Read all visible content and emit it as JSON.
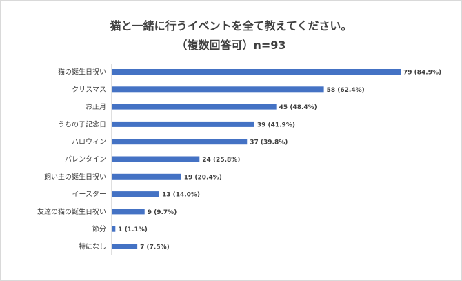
{
  "chart_data": {
    "type": "bar",
    "orientation": "horizontal",
    "title": "猫と一緒に行うイベントを全て教えてください。",
    "subtitle": "（複数回答可）n=93",
    "categories": [
      "猫の誕生日祝い",
      "クリスマス",
      "お正月",
      "うちの子記念日",
      "ハロウィン",
      "バレンタイン",
      "飼い主の誕生日祝い",
      "イースター",
      "友達の猫の誕生日祝い",
      "節分",
      "特になし"
    ],
    "values": [
      79,
      58,
      45,
      39,
      37,
      24,
      19,
      13,
      9,
      1,
      7
    ],
    "data_labels": [
      "79 (84.9%)",
      "58 (62.4%)",
      "45 (48.4%)",
      "39 (41.9%)",
      "37 (39.8%)",
      "24 (25.8%)",
      "19 (20.4%)",
      "13 (14.0%)",
      "9 (9.7%)",
      "1 (1.1%)",
      "7 (7.5%)"
    ],
    "xlim": [
      0,
      79
    ],
    "grid": false,
    "bar_color": "#4472c4"
  }
}
